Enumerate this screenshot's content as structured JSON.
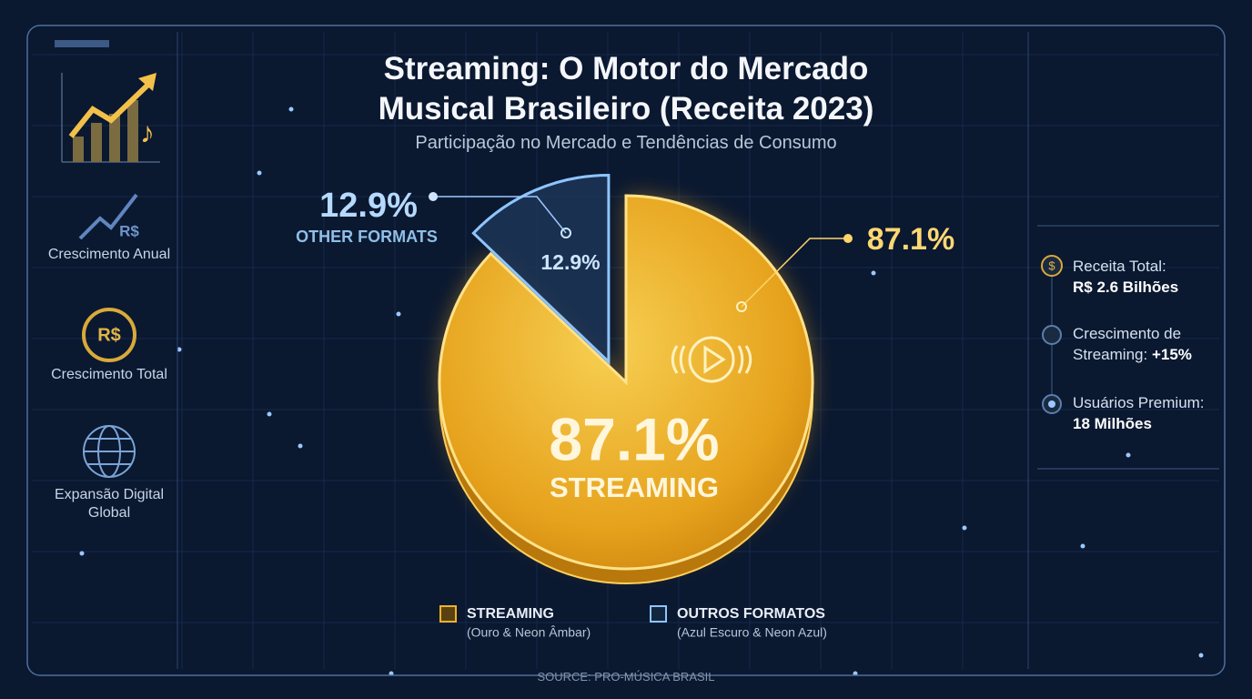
{
  "chart_data": {
    "type": "pie",
    "title": "Streaming: O Motor do Mercado Musical Brasileiro (Receita 2023)",
    "subtitle": "Participação no Mercado e Tendências de Consumo",
    "categories": [
      "STREAMING",
      "OTHER FORMATS"
    ],
    "values": [
      87.1,
      12.9
    ],
    "value_labels": [
      "87.1%",
      "12.9%"
    ],
    "colors": [
      "#f0b22c",
      "#1d3556"
    ],
    "legend": [
      {
        "name": "STREAMING",
        "note": "(Ouro & Neon Âmbar)",
        "color": "#f0b22c"
      },
      {
        "name": "OUTROS FORMATOS",
        "note": "(Azul Escuro & Neon Azul)",
        "color": "#8ec5ff"
      }
    ],
    "source": "SOURCE: PRO-MÚSICA BRASIL"
  },
  "left_panel": [
    {
      "icon": "R$",
      "label": "Crescimento Anual"
    },
    {
      "icon": "R$",
      "label": "Crescimento Total"
    },
    {
      "label": "Expansão Digital Global"
    }
  ],
  "right_panel": [
    {
      "icon": "$",
      "label": "Receita Total:",
      "value": "R$ 2.6 Bilhões"
    },
    {
      "label": "Crescimento de Streaming:",
      "value": "+15%"
    },
    {
      "label": "Usuários Premium:",
      "value": "18 Milhões"
    }
  ]
}
